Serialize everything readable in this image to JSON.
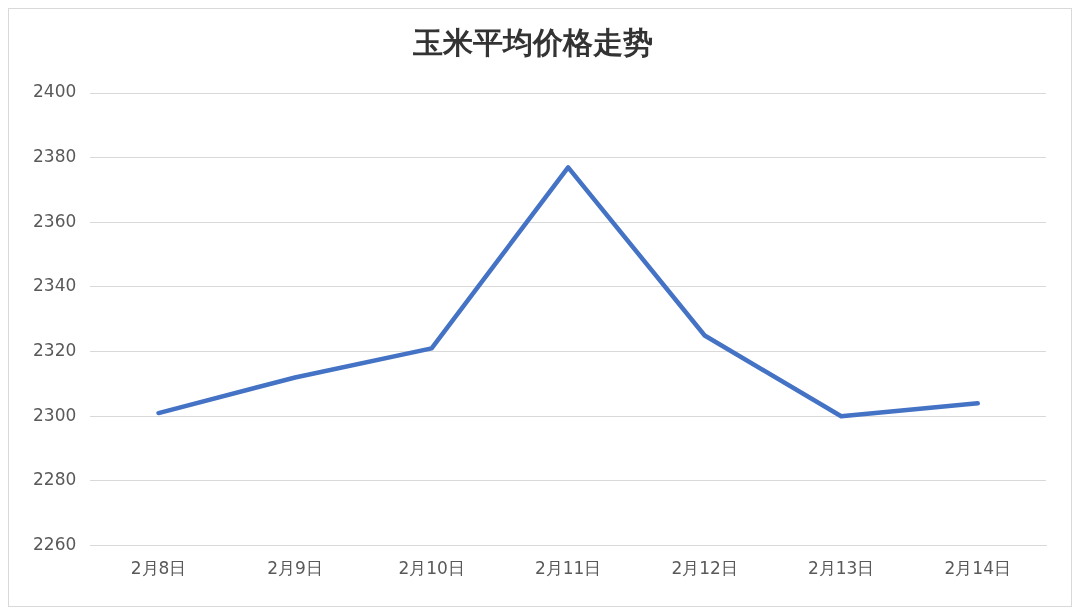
{
  "chart_data": {
    "type": "line",
    "title": "玉米平均价格走势",
    "categories": [
      "2月8日",
      "2月9日",
      "2月10日",
      "2月11日",
      "2月12日",
      "2月13日",
      "2月14日"
    ],
    "series": [
      {
        "color": "#4472c4",
        "values": [
          2301,
          2312,
          2321,
          2377,
          2325,
          2300,
          2304
        ]
      }
    ],
    "ylim": [
      2260,
      2400
    ],
    "yticks": [
      2260,
      2280,
      2300,
      2320,
      2340,
      2360,
      2380,
      2400
    ],
    "grid": "y",
    "legend": false,
    "marker": "none",
    "line_style": "solid"
  }
}
